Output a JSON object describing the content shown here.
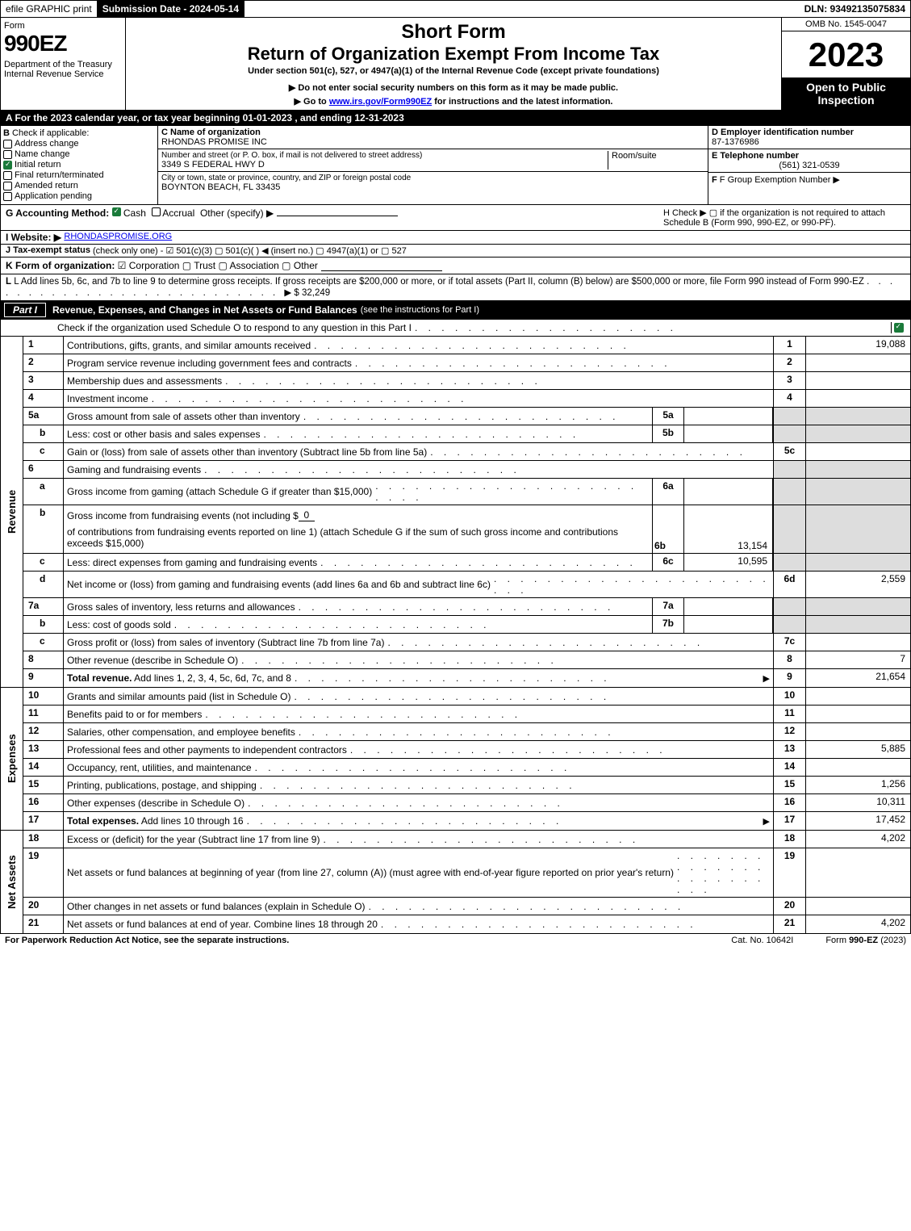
{
  "top": {
    "efile": "efile GRAPHIC print",
    "submission": "Submission Date - 2024-05-14",
    "dln": "DLN: 93492135075834"
  },
  "header": {
    "form": "Form",
    "number": "990EZ",
    "dept": "Department of the Treasury\nInternal Revenue Service",
    "short": "Short Form",
    "title": "Return of Organization Exempt From Income Tax",
    "under": "Under section 501(c), 527, or 4947(a)(1) of the Internal Revenue Code (except private foundations)",
    "donot": "▶ Do not enter social security numbers on this form as it may be made public.",
    "goto_pre": "▶ Go to ",
    "goto_link": "www.irs.gov/Form990EZ",
    "goto_post": " for instructions and the latest information.",
    "omb": "OMB No. 1545-0047",
    "year": "2023",
    "open": "Open to Public Inspection"
  },
  "a": "A  For the 2023 calendar year, or tax year beginning 01-01-2023  , and ending 12-31-2023",
  "b": {
    "label": "B",
    "check": "Check if applicable:",
    "items": [
      "Address change",
      "Name change",
      "Initial return",
      "Final return/terminated",
      "Amended return",
      "Application pending"
    ],
    "checked_index": 2
  },
  "c": {
    "name_label": "C Name of organization",
    "name": "RHONDAS PROMISE INC",
    "addr_label": "Number and street (or P. O. box, if mail is not delivered to street address)",
    "addr": "3349 S FEDERAL HWY D",
    "room_label": "Room/suite",
    "city_label": "City or town, state or province, country, and ZIP or foreign postal code",
    "city": "BOYNTON BEACH, FL  33435"
  },
  "d": {
    "label": "D Employer identification number",
    "value": "87-1376986"
  },
  "e": {
    "label": "E Telephone number",
    "value": "(561) 321-0539"
  },
  "f": {
    "label": "F Group Exemption Number   ▶"
  },
  "g": {
    "label": "G Accounting Method:",
    "cash": "Cash",
    "accrual": "Accrual",
    "other": "Other (specify) ▶"
  },
  "h": {
    "text": "H  Check ▶  ▢  if the organization is not required to attach Schedule B (Form 990, 990-EZ, or 990-PF)."
  },
  "i": {
    "label": "I Website: ▶",
    "value": "RHONDASPROMISE.ORG"
  },
  "j": {
    "label": "J Tax-exempt status",
    "text": "(check only one) -  ☑ 501(c)(3)  ▢ 501(c)(  ) ◀ (insert no.)  ▢ 4947(a)(1) or  ▢ 527"
  },
  "k": {
    "label": "K Form of organization:",
    "text": "☑ Corporation   ▢ Trust   ▢ Association   ▢ Other"
  },
  "l": {
    "text": "L Add lines 5b, 6c, and 7b to line 9 to determine gross receipts. If gross receipts are $200,000 or more, or if total assets (Part II, column (B) below) are $500,000 or more, file Form 990 instead of Form 990-EZ",
    "amount": "▶ $ 32,249"
  },
  "part1": {
    "label": "Part I",
    "title": "Revenue, Expenses, and Changes in Net Assets or Fund Balances",
    "sub": "(see the instructions for Part I)",
    "check": "Check if the organization used Schedule O to respond to any question in this Part I"
  },
  "sections": {
    "revenue": "Revenue",
    "expenses": "Expenses",
    "netassets": "Net Assets"
  },
  "lines": {
    "1": {
      "desc": "Contributions, gifts, grants, and similar amounts received",
      "rn": "1",
      "rv": "19,088"
    },
    "2": {
      "desc": "Program service revenue including government fees and contracts",
      "rn": "2",
      "rv": ""
    },
    "3": {
      "desc": "Membership dues and assessments",
      "rn": "3",
      "rv": ""
    },
    "4": {
      "desc": "Investment income",
      "rn": "4",
      "rv": ""
    },
    "5a": {
      "desc": "Gross amount from sale of assets other than inventory",
      "in": "5a",
      "iv": ""
    },
    "5b": {
      "desc": "Less: cost or other basis and sales expenses",
      "in": "5b",
      "iv": ""
    },
    "5c": {
      "desc": "Gain or (loss) from sale of assets other than inventory (Subtract line 5b from line 5a)",
      "rn": "5c",
      "rv": ""
    },
    "6": {
      "desc": "Gaming and fundraising events"
    },
    "6a": {
      "desc": "Gross income from gaming (attach Schedule G if greater than $15,000)",
      "in": "6a",
      "iv": ""
    },
    "6b": {
      "desc_pre": "Gross income from fundraising events (not including $",
      "desc_val": "0",
      "desc_post": "of contributions from fundraising events reported on line 1) (attach Schedule G if the sum of such gross income and contributions exceeds $15,000)",
      "in": "6b",
      "iv": "13,154"
    },
    "6c": {
      "desc": "Less: direct expenses from gaming and fundraising events",
      "in": "6c",
      "iv": "10,595"
    },
    "6d": {
      "desc": "Net income or (loss) from gaming and fundraising events (add lines 6a and 6b and subtract line 6c)",
      "rn": "6d",
      "rv": "2,559"
    },
    "7a": {
      "desc": "Gross sales of inventory, less returns and allowances",
      "in": "7a",
      "iv": ""
    },
    "7b": {
      "desc": "Less: cost of goods sold",
      "in": "7b",
      "iv": ""
    },
    "7c": {
      "desc": "Gross profit or (loss) from sales of inventory (Subtract line 7b from line 7a)",
      "rn": "7c",
      "rv": ""
    },
    "8": {
      "desc": "Other revenue (describe in Schedule O)",
      "rn": "8",
      "rv": "7"
    },
    "9": {
      "desc": "Total revenue. Add lines 1, 2, 3, 4, 5c, 6d, 7c, and 8",
      "rn": "9",
      "rv": "21,654",
      "bold": true
    },
    "10": {
      "desc": "Grants and similar amounts paid (list in Schedule O)",
      "rn": "10",
      "rv": ""
    },
    "11": {
      "desc": "Benefits paid to or for members",
      "rn": "11",
      "rv": ""
    },
    "12": {
      "desc": "Salaries, other compensation, and employee benefits",
      "rn": "12",
      "rv": ""
    },
    "13": {
      "desc": "Professional fees and other payments to independent contractors",
      "rn": "13",
      "rv": "5,885"
    },
    "14": {
      "desc": "Occupancy, rent, utilities, and maintenance",
      "rn": "14",
      "rv": ""
    },
    "15": {
      "desc": "Printing, publications, postage, and shipping",
      "rn": "15",
      "rv": "1,256"
    },
    "16": {
      "desc": "Other expenses (describe in Schedule O)",
      "rn": "16",
      "rv": "10,311"
    },
    "17": {
      "desc": "Total expenses. Add lines 10 through 16",
      "rn": "17",
      "rv": "17,452",
      "bold": true
    },
    "18": {
      "desc": "Excess or (deficit) for the year (Subtract line 17 from line 9)",
      "rn": "18",
      "rv": "4,202"
    },
    "19": {
      "desc": "Net assets or fund balances at beginning of year (from line 27, column (A)) (must agree with end-of-year figure reported on prior year's return)",
      "rn": "19",
      "rv": ""
    },
    "20": {
      "desc": "Other changes in net assets or fund balances (explain in Schedule O)",
      "rn": "20",
      "rv": ""
    },
    "21": {
      "desc": "Net assets or fund balances at end of year. Combine lines 18 through 20",
      "rn": "21",
      "rv": "4,202"
    }
  },
  "footer": {
    "left": "For Paperwork Reduction Act Notice, see the separate instructions.",
    "center": "Cat. No. 10642I",
    "right_pre": "Form ",
    "right_bold": "990-EZ",
    "right_post": " (2023)"
  }
}
